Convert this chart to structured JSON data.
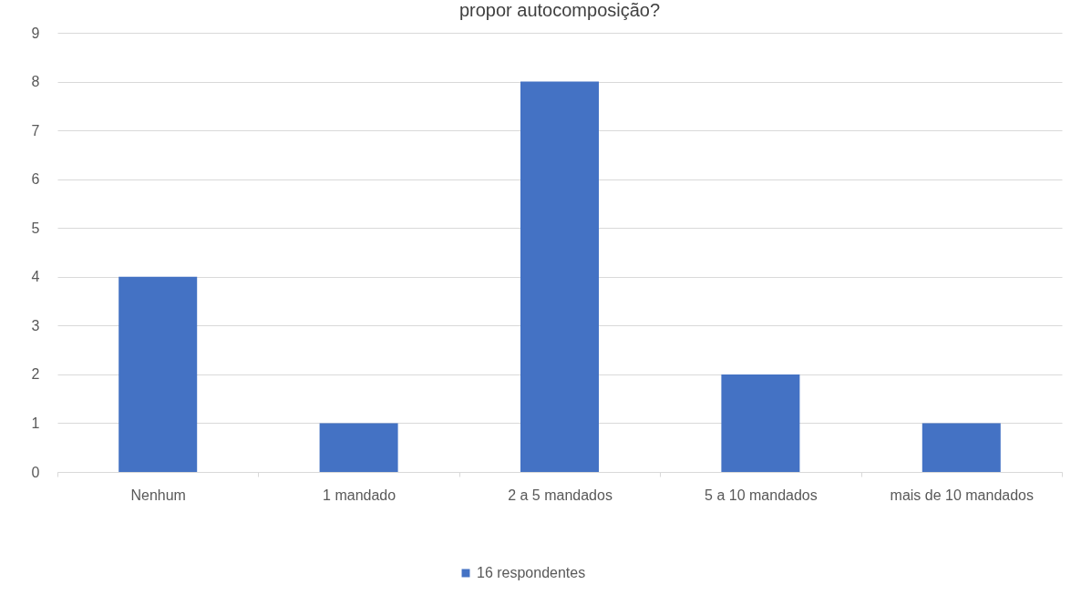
{
  "chart_data": {
    "type": "bar",
    "title": "propor autocomposição?",
    "categories": [
      "Nenhum",
      "1 mandado",
      "2 a 5 mandados",
      "5 a 10 mandados",
      "mais de 10 mandados"
    ],
    "series": [
      {
        "name": "16 respondentes",
        "color": "#4472c4",
        "values": [
          4,
          1,
          8,
          2,
          1
        ]
      }
    ],
    "ylim": [
      0,
      9
    ],
    "yticks": [
      0,
      1,
      2,
      3,
      4,
      5,
      6,
      7,
      8,
      9
    ],
    "grid": "y",
    "legend": "bottom"
  }
}
